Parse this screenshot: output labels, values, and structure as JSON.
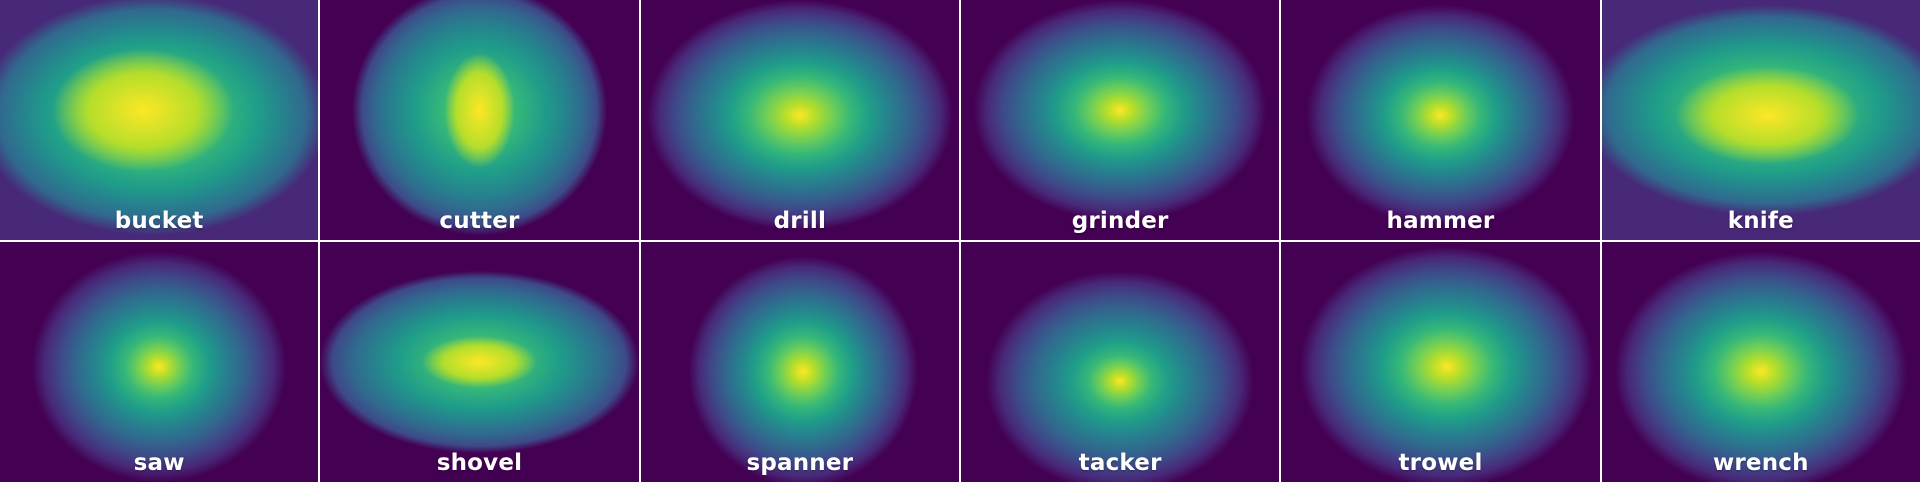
{
  "tiles": [
    {
      "label": "bucket"
    },
    {
      "label": "cutter"
    },
    {
      "label": "drill"
    },
    {
      "label": "grinder"
    },
    {
      "label": "hammer"
    },
    {
      "label": "knife"
    },
    {
      "label": "saw"
    },
    {
      "label": "shovel"
    },
    {
      "label": "spanner"
    },
    {
      "label": "tacker"
    },
    {
      "label": "trowel"
    },
    {
      "label": "wrench"
    }
  ],
  "colormap": "viridis"
}
